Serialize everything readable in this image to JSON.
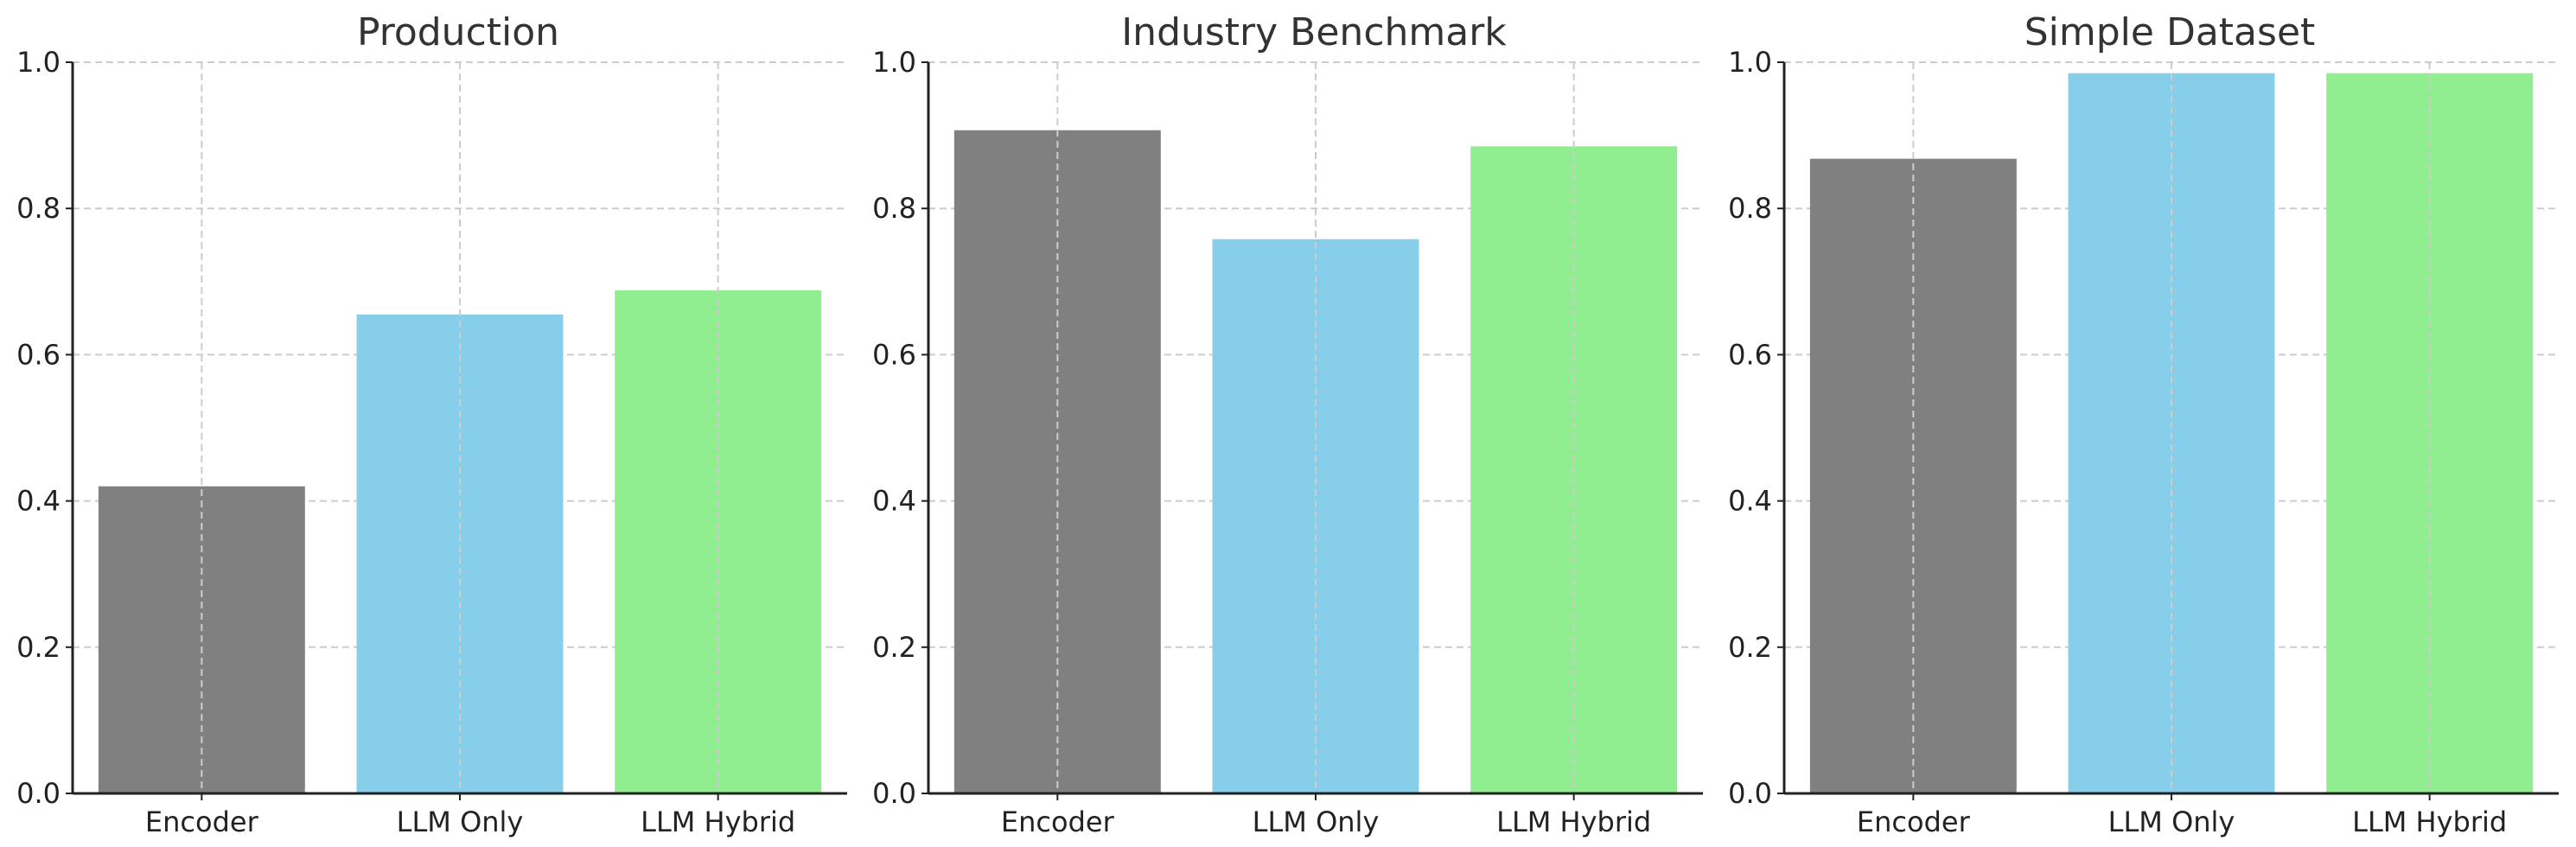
{
  "chart_data": [
    {
      "type": "bar",
      "title": "Production",
      "categories": [
        "Encoder",
        "LLM Only",
        "LLM Hybrid"
      ],
      "values": [
        0.42,
        0.655,
        0.688
      ],
      "colors": [
        "#808080",
        "#87ceeb",
        "#90ee90"
      ],
      "ylim": [
        0,
        1.0
      ],
      "yticks": [
        "0.0",
        "0.2",
        "0.4",
        "0.6",
        "0.8",
        "1.0"
      ],
      "grid": true
    },
    {
      "type": "bar",
      "title": "Industry Benchmark",
      "categories": [
        "Encoder",
        "LLM Only",
        "LLM Hybrid"
      ],
      "values": [
        0.907,
        0.758,
        0.885
      ],
      "colors": [
        "#808080",
        "#87ceeb",
        "#90ee90"
      ],
      "ylim": [
        0,
        1.0
      ],
      "yticks": [
        "0.0",
        "0.2",
        "0.4",
        "0.6",
        "0.8",
        "1.0"
      ],
      "grid": true
    },
    {
      "type": "bar",
      "title": "Simple Dataset",
      "categories": [
        "Encoder",
        "LLM Only",
        "LLM Hybrid"
      ],
      "values": [
        0.868,
        0.985,
        0.985
      ],
      "colors": [
        "#808080",
        "#87ceeb",
        "#90ee90"
      ],
      "ylim": [
        0,
        1.0
      ],
      "yticks": [
        "0.0",
        "0.2",
        "0.4",
        "0.6",
        "0.8",
        "1.0"
      ],
      "grid": true
    }
  ]
}
